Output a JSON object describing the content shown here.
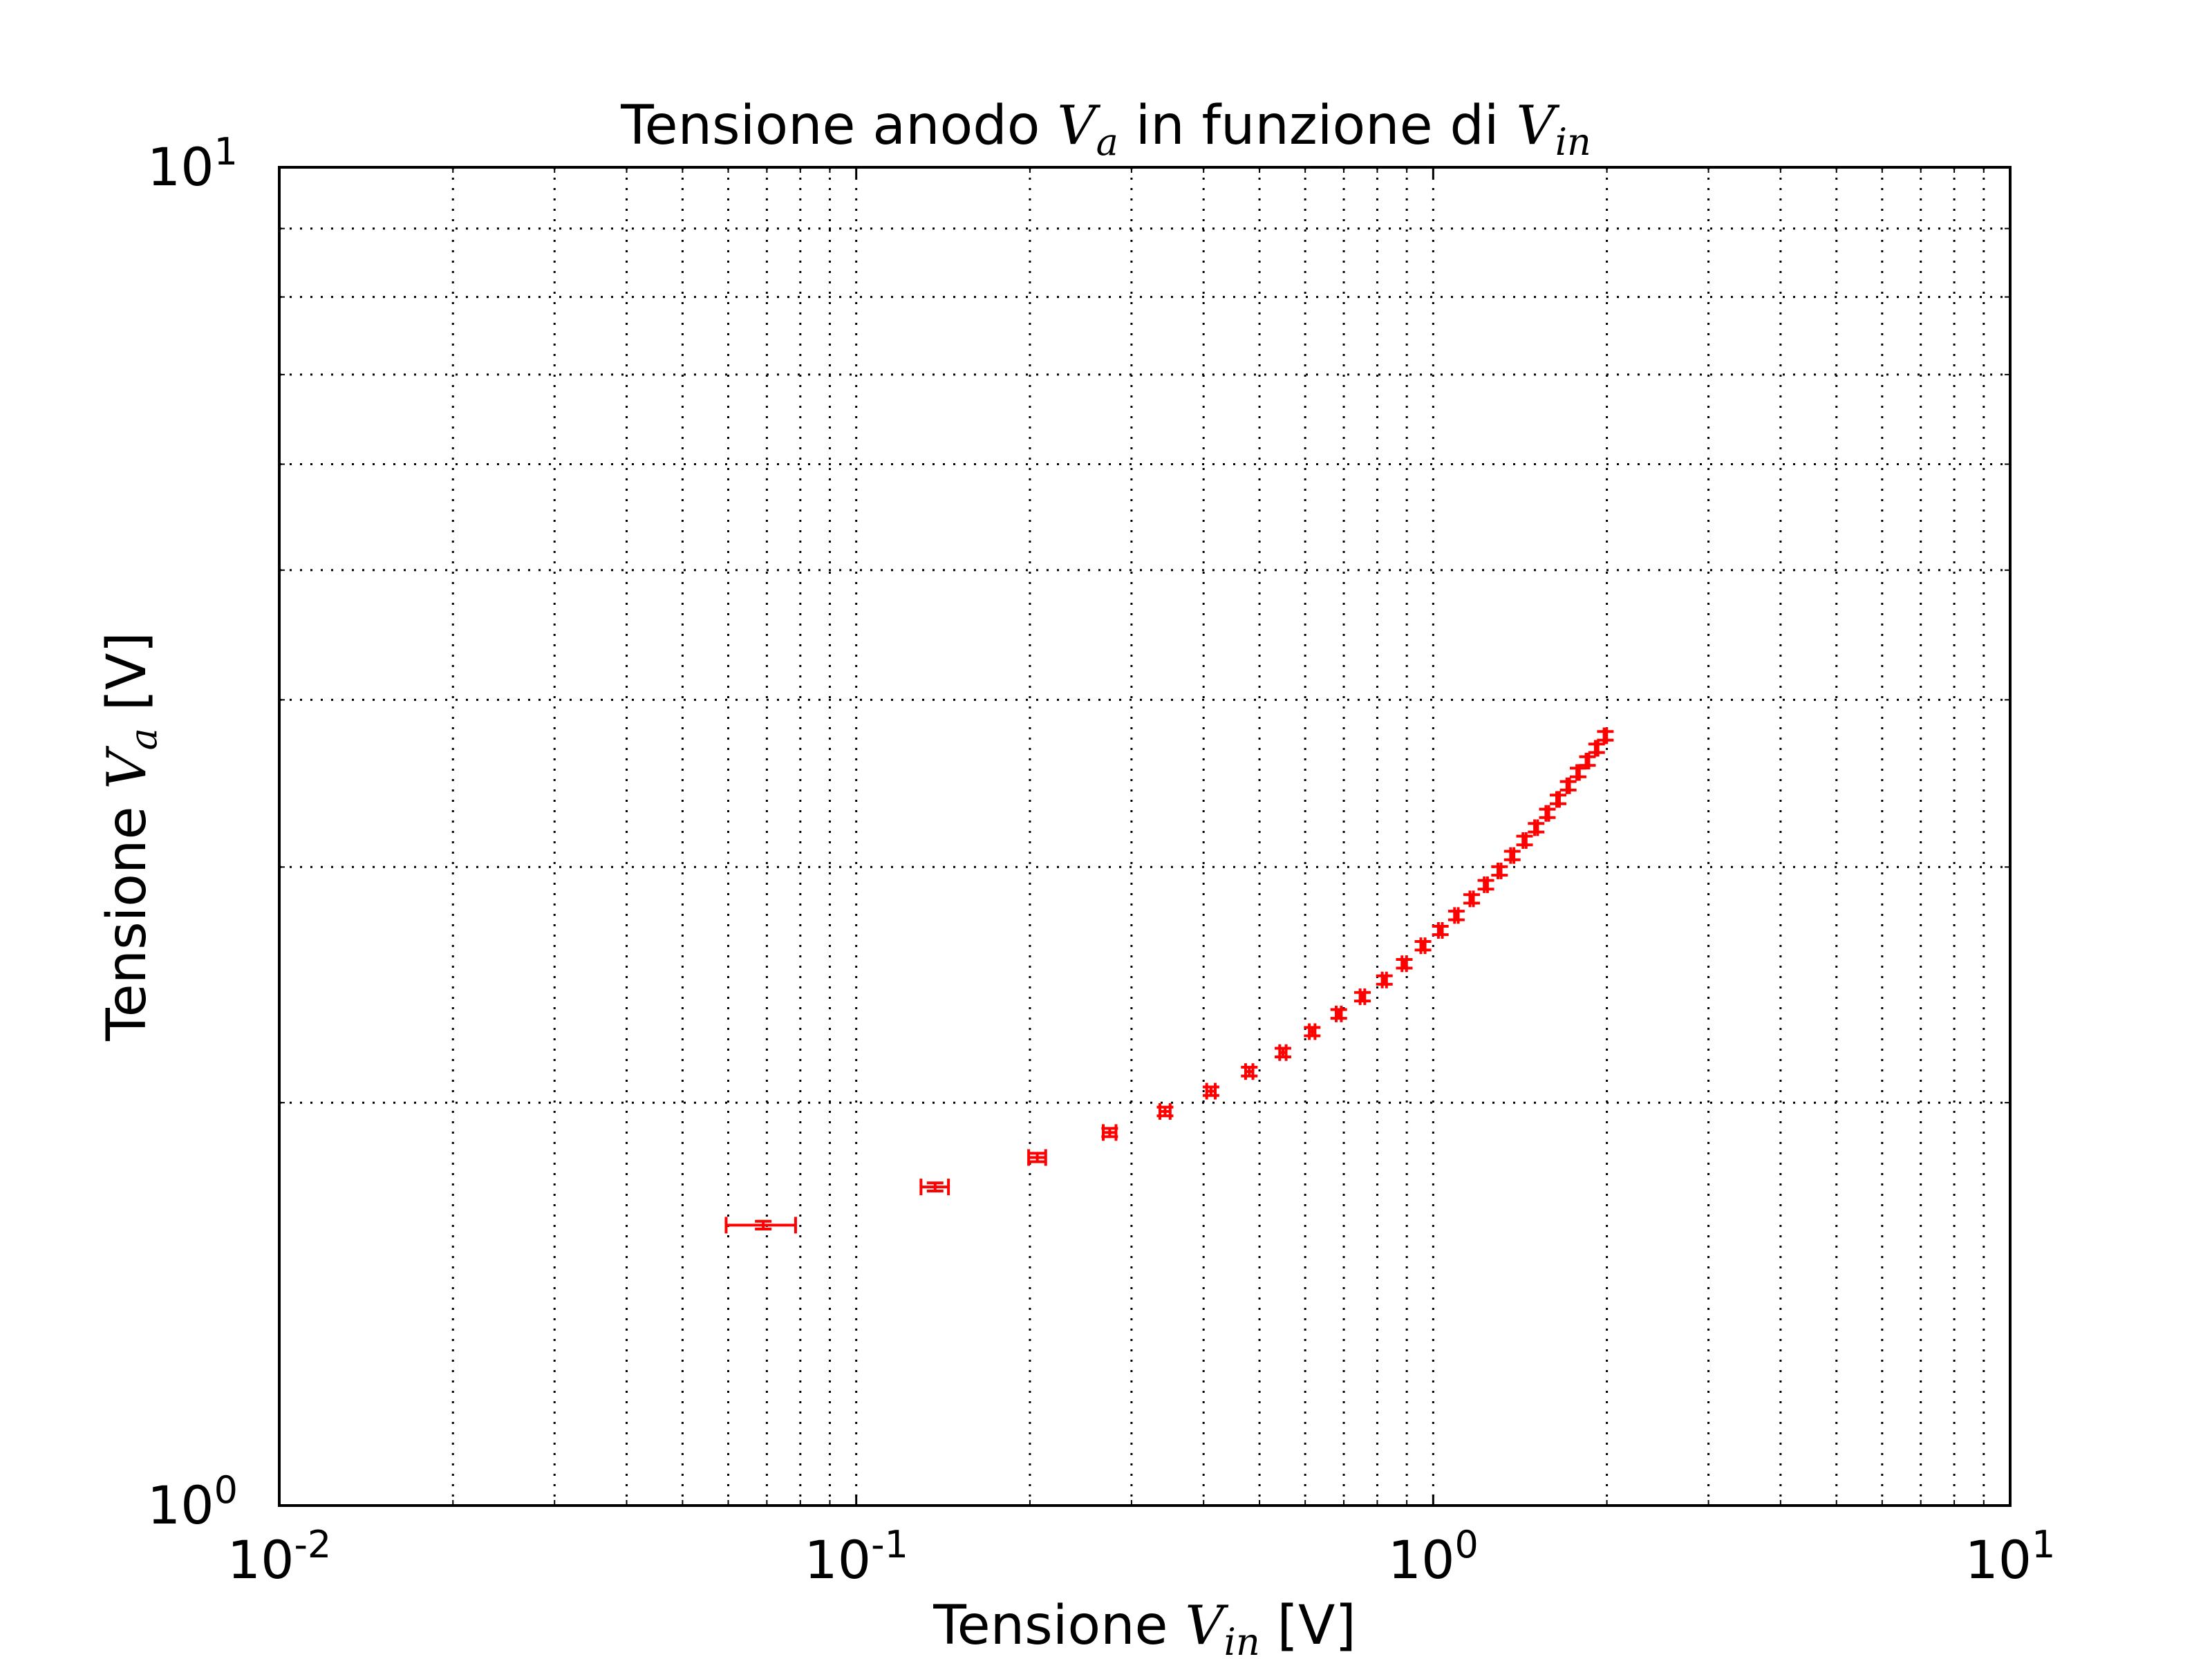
{
  "chart_data": {
    "type": "scatter",
    "title_text": "Tensione anodo ",
    "title_math_1": "V",
    "title_math_1_sub": "a",
    "title_mid": " in funzione di ",
    "title_math_2": "V",
    "title_math_2_sub": "in",
    "xlabel_text": "Tensione ",
    "xlabel_math": "V",
    "xlabel_math_sub": "in",
    "xlabel_unit": " [V]",
    "ylabel_text": "Tensione ",
    "ylabel_math": "V",
    "ylabel_math_sub": "a",
    "ylabel_unit": " [V]",
    "x_scale": "log",
    "y_scale": "log",
    "xlim": [
      0.01,
      10
    ],
    "ylim": [
      1,
      10
    ],
    "grid": true,
    "legend": "none",
    "x_ticks": [
      {
        "value": 0.01,
        "base": "10",
        "exp": "-2"
      },
      {
        "value": 0.1,
        "base": "10",
        "exp": "-1"
      },
      {
        "value": 1,
        "base": "10",
        "exp": "0"
      },
      {
        "value": 10,
        "base": "10",
        "exp": "1"
      }
    ],
    "y_ticks": [
      {
        "value": 1,
        "base": "10",
        "exp": "0"
      },
      {
        "value": 10,
        "base": "10",
        "exp": "1"
      }
    ],
    "series": [
      {
        "color": "#ff0000",
        "marker": "errorbar",
        "points": [
          {
            "x": 0.069,
            "y": 1.62,
            "xerr": 0.0095,
            "yerr": 0.007
          },
          {
            "x": 0.137,
            "y": 1.73,
            "xerr": 0.0075,
            "yerr": 0.008
          },
          {
            "x": 0.206,
            "y": 1.82,
            "xerr": 0.007,
            "yerr": 0.009
          },
          {
            "x": 0.275,
            "y": 1.9,
            "xerr": 0.007,
            "yerr": 0.009
          },
          {
            "x": 0.343,
            "y": 1.97,
            "xerr": 0.007,
            "yerr": 0.01
          },
          {
            "x": 0.412,
            "y": 2.04,
            "xerr": 0.007,
            "yerr": 0.01
          },
          {
            "x": 0.48,
            "y": 2.11,
            "xerr": 0.007,
            "yerr": 0.011
          },
          {
            "x": 0.549,
            "y": 2.18,
            "xerr": 0.007,
            "yerr": 0.011
          },
          {
            "x": 0.617,
            "y": 2.26,
            "xerr": 0.007,
            "yerr": 0.011
          },
          {
            "x": 0.686,
            "y": 2.33,
            "xerr": 0.007,
            "yerr": 0.012
          },
          {
            "x": 0.754,
            "y": 2.4,
            "xerr": 0.007,
            "yerr": 0.012
          },
          {
            "x": 0.823,
            "y": 2.47,
            "xerr": 0.007,
            "yerr": 0.012
          },
          {
            "x": 0.891,
            "y": 2.54,
            "xerr": 0.008,
            "yerr": 0.013
          },
          {
            "x": 0.96,
            "y": 2.62,
            "xerr": 0.008,
            "yerr": 0.013
          },
          {
            "x": 1.029,
            "y": 2.69,
            "xerr": 0.008,
            "yerr": 0.013
          },
          {
            "x": 1.097,
            "y": 2.76,
            "xerr": 0.008,
            "yerr": 0.014
          },
          {
            "x": 1.166,
            "y": 2.84,
            "xerr": 0.008,
            "yerr": 0.014
          },
          {
            "x": 1.234,
            "y": 2.91,
            "xerr": 0.008,
            "yerr": 0.015
          },
          {
            "x": 1.303,
            "y": 2.98,
            "xerr": 0.008,
            "yerr": 0.015
          },
          {
            "x": 1.371,
            "y": 3.06,
            "xerr": 0.009,
            "yerr": 0.015
          },
          {
            "x": 1.44,
            "y": 3.14,
            "xerr": 0.009,
            "yerr": 0.016
          },
          {
            "x": 1.508,
            "y": 3.21,
            "xerr": 0.009,
            "yerr": 0.016
          },
          {
            "x": 1.577,
            "y": 3.29,
            "xerr": 0.009,
            "yerr": 0.016
          },
          {
            "x": 1.646,
            "y": 3.37,
            "xerr": 0.009,
            "yerr": 0.017
          },
          {
            "x": 1.714,
            "y": 3.45,
            "xerr": 0.009,
            "yerr": 0.017
          },
          {
            "x": 1.783,
            "y": 3.53,
            "xerr": 0.009,
            "yerr": 0.018
          },
          {
            "x": 1.851,
            "y": 3.6,
            "xerr": 0.01,
            "yerr": 0.018
          },
          {
            "x": 1.92,
            "y": 3.68,
            "xerr": 0.01,
            "yerr": 0.018
          },
          {
            "x": 1.988,
            "y": 3.76,
            "xerr": 0.01,
            "yerr": 0.019
          }
        ]
      }
    ]
  }
}
